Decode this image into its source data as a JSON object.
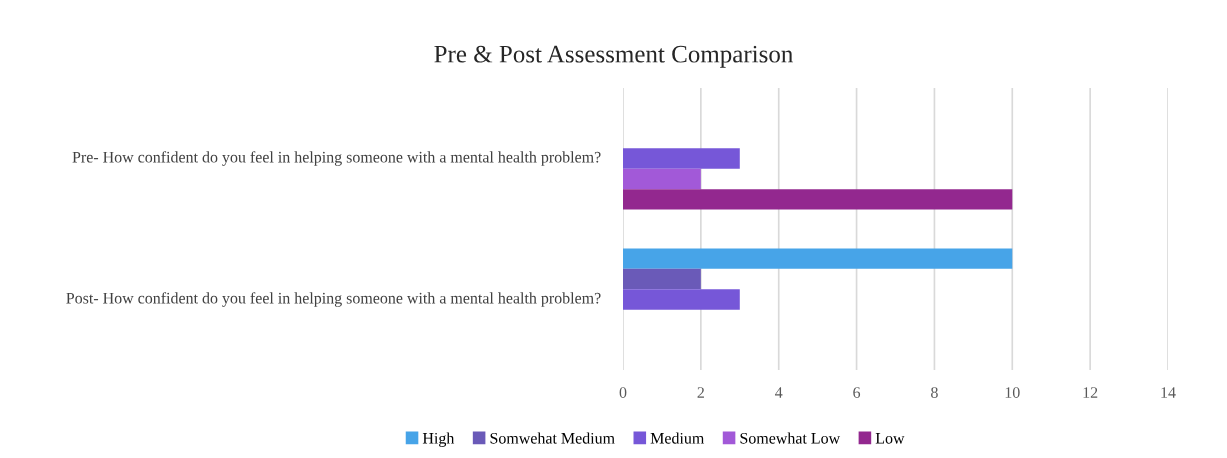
{
  "chart_data": {
    "type": "bar",
    "orientation": "horizontal",
    "title": "Pre & Post Assessment Comparison",
    "categories": [
      "Pre- How confident do you feel in helping someone with a mental health problem?",
      "Post- How confident do you feel in helping someone with a mental health problem?"
    ],
    "series": [
      {
        "name": "High",
        "color": "#47a4e8",
        "values": [
          0,
          10
        ]
      },
      {
        "name": "Somwehat Medium",
        "color": "#6a5ab8",
        "values": [
          0,
          2
        ]
      },
      {
        "name": "Medium",
        "color": "#7657d8",
        "values": [
          3,
          3
        ]
      },
      {
        "name": "Somewhat Low",
        "color": "#a259d8",
        "values": [
          2,
          0
        ]
      },
      {
        "name": "Low",
        "color": "#93288f",
        "values": [
          10,
          0
        ]
      }
    ],
    "xlim": [
      0,
      14
    ],
    "xticks": [
      0,
      2,
      4,
      6,
      8,
      10,
      12,
      14
    ],
    "grid": "x",
    "legend": "bottom"
  }
}
